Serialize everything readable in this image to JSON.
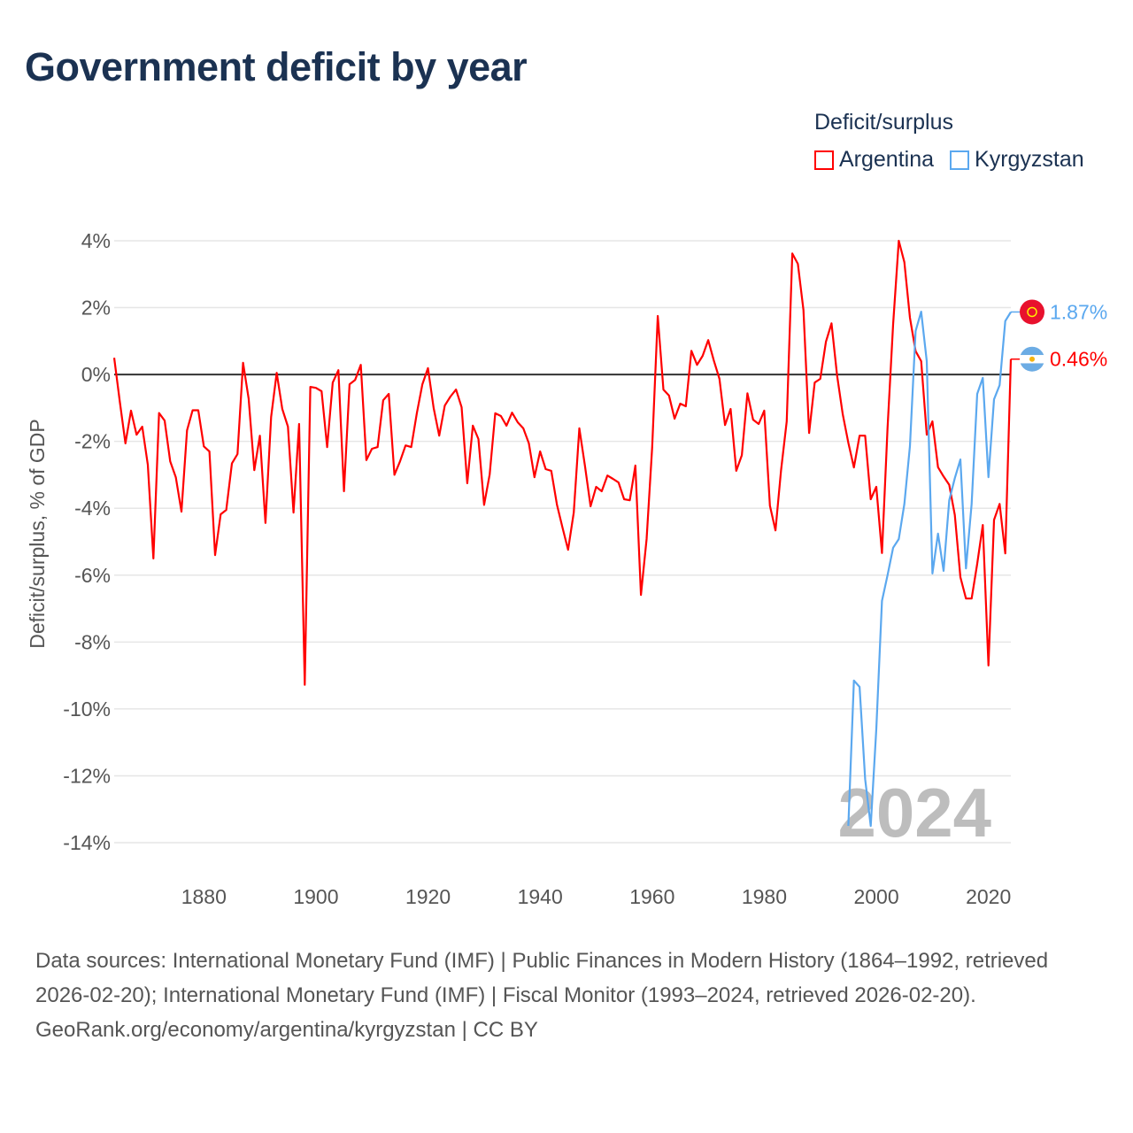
{
  "title": "Government deficit by year",
  "legend": {
    "title": "Deficit/surplus",
    "items": [
      {
        "label": "Argentina",
        "color": "#ff0000"
      },
      {
        "label": "Kyrgyzstan",
        "color": "#5ba8ef"
      }
    ]
  },
  "watermark_year": "2024",
  "footer": {
    "sources": "Data sources: International Monetary Fund (IMF) | Public Finances in Modern History (1864–1992, retrieved 2026-02-20); International Monetary Fund (IMF) | Fiscal Monitor (1993–2024, retrieved 2026-02-20).",
    "credit": "GeoRank.org/economy/argentina/kyrgyzstan | CC BY"
  },
  "chart_data": {
    "type": "line",
    "title": "Government deficit by year",
    "ylabel": "Deficit/surplus, % of GDP",
    "xlabel": "",
    "xlim": [
      1864,
      2024
    ],
    "ylim": [
      -14,
      4
    ],
    "yticks": [
      4,
      2,
      0,
      -2,
      -4,
      -6,
      -8,
      -10,
      -12,
      -14
    ],
    "ytick_labels": [
      "4%",
      "2%",
      "0%",
      "-2%",
      "-4%",
      "-6%",
      "-8%",
      "-10%",
      "-12%",
      "-14%"
    ],
    "xticks": [
      1880,
      1900,
      1920,
      1940,
      1960,
      1980,
      2000,
      2020
    ],
    "xtick_labels": [
      "1880",
      "1900",
      "1920",
      "1940",
      "1960",
      "1980",
      "2000",
      "2020"
    ],
    "grid": true,
    "legend_position": "top-right",
    "series": [
      {
        "name": "Argentina",
        "color": "#ff0000",
        "start_year": 1864,
        "end_label": "0.46%",
        "values": [
          0.5,
          -0.8,
          -2.06,
          -1.08,
          -1.8,
          -1.56,
          -2.7,
          -5.5,
          -1.15,
          -1.38,
          -2.6,
          -3.07,
          -4.1,
          -1.67,
          -1.07,
          -1.07,
          -2.15,
          -2.3,
          -5.4,
          -4.18,
          -4.05,
          -2.66,
          -2.38,
          0.35,
          -0.72,
          -2.86,
          -1.83,
          -4.44,
          -1.27,
          0.05,
          -1.03,
          -1.56,
          -4.13,
          -1.48,
          -9.28,
          -0.37,
          -0.4,
          -0.5,
          -2.17,
          -0.24,
          0.13,
          -3.49,
          -0.29,
          -0.16,
          0.29,
          -2.56,
          -2.22,
          -2.17,
          -0.77,
          -0.58,
          -3.0,
          -2.6,
          -2.12,
          -2.17,
          -1.16,
          -0.29,
          0.19,
          -1.0,
          -1.83,
          -0.93,
          -0.66,
          -0.45,
          -0.98,
          -3.25,
          -1.53,
          -1.93,
          -3.9,
          -2.99,
          -1.16,
          -1.24,
          -1.53,
          -1.14,
          -1.43,
          -1.61,
          -2.06,
          -3.07,
          -2.3,
          -2.83,
          -2.88,
          -3.89,
          -4.58,
          -5.24,
          -4.13,
          -1.61,
          -2.72,
          -3.94,
          -3.36,
          -3.49,
          -3.02,
          -3.12,
          -3.23,
          -3.73,
          -3.76,
          -2.72,
          -6.59,
          -4.92,
          -2.17,
          1.75,
          -0.45,
          -0.63,
          -1.32,
          -0.87,
          -0.95,
          0.71,
          0.29,
          0.56,
          1.03,
          0.42,
          -0.13,
          -1.51,
          -1.03,
          -2.88,
          -2.41,
          -0.56,
          -1.35,
          -1.48,
          -1.08,
          -3.92,
          -4.66,
          -2.86,
          -1.4,
          3.62,
          3.31,
          1.93,
          -1.75,
          -0.24,
          -0.13,
          0.98,
          1.53,
          -0.03,
          -1.19,
          -2.04,
          -2.78,
          -1.83,
          -1.83,
          -3.73,
          -3.36,
          -5.34,
          -1.6,
          1.5,
          4.0,
          3.36,
          1.7,
          0.7,
          0.4,
          -1.8,
          -1.4,
          -2.77,
          -3.05,
          -3.3,
          -4.2,
          -6.06,
          -6.7,
          -6.7,
          -5.66,
          -4.5,
          -8.7,
          -4.35,
          -3.87,
          -5.35,
          0.46
        ]
      },
      {
        "name": "Kyrgyzstan",
        "color": "#5ba8ef",
        "start_year": 1995,
        "end_label": "1.87%",
        "values": [
          -13.5,
          -9.15,
          -9.34,
          -12.1,
          -13.5,
          -10.6,
          -6.77,
          -6.0,
          -5.18,
          -4.92,
          -3.87,
          -2.14,
          1.3,
          1.88,
          0.4,
          -5.95,
          -4.76,
          -5.87,
          -3.76,
          -3.1,
          -2.54,
          -5.8,
          -3.87,
          -0.58,
          -0.1,
          -3.07,
          -0.74,
          -0.32,
          1.6,
          1.87
        ]
      }
    ]
  }
}
